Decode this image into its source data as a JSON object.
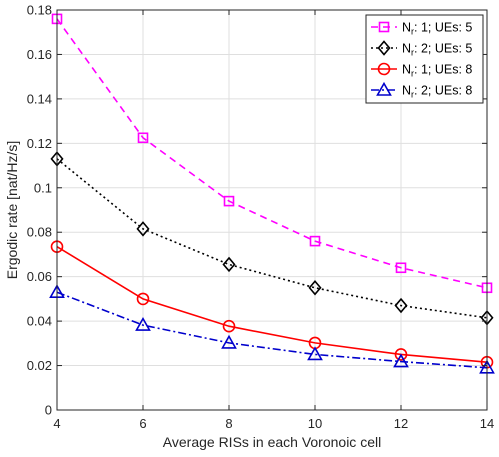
{
  "chart_data": {
    "type": "line",
    "title": "",
    "xlabel": "Average RISs in each Voronoic cell",
    "ylabel": "Ergodic rate [nat/Hz/s]",
    "xlim": [
      4,
      14
    ],
    "ylim": [
      0,
      0.18
    ],
    "xticks": [
      4,
      6,
      8,
      10,
      12,
      14
    ],
    "yticks": [
      0,
      0.02,
      0.04,
      0.06,
      0.08,
      0.1,
      0.12,
      0.14,
      0.16,
      0.18
    ],
    "xtick_labels": [
      "4",
      "6",
      "8",
      "10",
      "12",
      "14"
    ],
    "ytick_labels": [
      "0",
      "0.02",
      "0.04",
      "0.06",
      "0.08",
      "0.1",
      "0.12",
      "0.14",
      "0.16",
      "0.18"
    ],
    "grid": true,
    "legend_position": "top-right",
    "x": [
      4,
      6,
      8,
      10,
      12,
      14
    ],
    "series": [
      {
        "name_main": "N",
        "name_sub": "r",
        "name_rest": ": 1; UEs: 5",
        "values": [
          0.176,
          0.1225,
          0.094,
          0.076,
          0.064,
          0.055
        ],
        "color": "#ff00ff",
        "dash": "7,5",
        "marker": "square"
      },
      {
        "name_main": "N",
        "name_sub": "r",
        "name_rest": ": 2; UEs: 5",
        "values": [
          0.113,
          0.0815,
          0.0655,
          0.055,
          0.047,
          0.0415
        ],
        "color": "#000000",
        "dash": "2,3",
        "marker": "diamond"
      },
      {
        "name_main": "N",
        "name_sub": "r",
        "name_rest": ": 1; UEs: 8",
        "values": [
          0.0735,
          0.05,
          0.0377,
          0.0302,
          0.025,
          0.0215
        ],
        "color": "#ff0000",
        "dash": "",
        "marker": "circle"
      },
      {
        "name_main": "N",
        "name_sub": "r",
        "name_rest": ": 2; UEs: 8",
        "values": [
          0.053,
          0.0382,
          0.0302,
          0.025,
          0.0218,
          0.019
        ],
        "color": "#0000cc",
        "dash": "8,3,2,3",
        "marker": "triangle"
      }
    ]
  }
}
